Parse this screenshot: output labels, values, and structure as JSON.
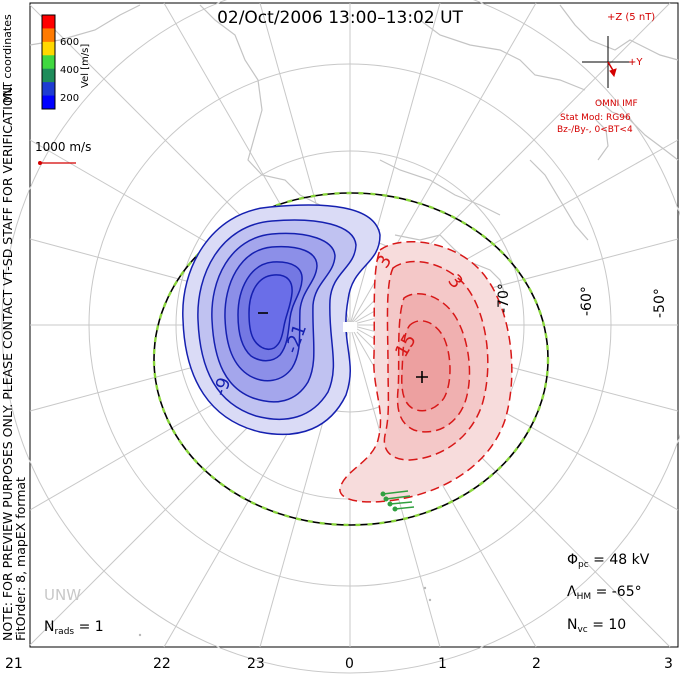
{
  "title": "02/Oct/2006 13:00–13:02 UT",
  "notes": {
    "line1": "NOTE: FOR PREVIEW PURPOSES ONLY. PLEASE CONTACT VT-SD STAFF FOR VERIFICATION.",
    "line2": "FitOrder: 8, mapEX format",
    "coords": "MLT coordinates"
  },
  "colorbar": {
    "label": "Vel [m/s]",
    "ticks": [
      "600",
      "400",
      "200"
    ],
    "colors": [
      "#ff0000",
      "#ff7a00",
      "#ffd800",
      "#40d840",
      "#1e8c5a",
      "#1e3cd2",
      "#0000ff"
    ]
  },
  "reference_vector": {
    "label": "1000 m/s"
  },
  "imf": {
    "z_label": "+Z (5 nT)",
    "y_label": "+Y",
    "source": "OMNI IMF",
    "model": "Stat Mod: RG96",
    "condition": "Bz-/By-, 0<BT<4"
  },
  "lat_labels": [
    "-70°",
    "-60°",
    "-50°"
  ],
  "mlt_ticks": [
    "21",
    "22",
    "23",
    "0",
    "1",
    "2",
    "3"
  ],
  "contour_labels": {
    "negative": [
      "-21",
      "-9"
    ],
    "positive": [
      "3",
      "3",
      "15"
    ]
  },
  "stats": {
    "phi_symbol": "Φ",
    "phi_sub": "pc",
    "phi_value": "= 48 kV",
    "lambda_symbol": "Λ",
    "lambda_sub": "HM",
    "lambda_value": "= -65°",
    "nvc_symbol": "N",
    "nvc_sub": "vc",
    "nvc_value": "= 10",
    "nrads_symbol": "N",
    "nrads_sub": "rads",
    "nrads_value": "= 1"
  },
  "station_label": "UNW",
  "colors": {
    "negative_line": "#1520b0",
    "negative_fill": "#6a6ee8",
    "positive_line": "#d81818",
    "positive_fill": "#f0a0a0",
    "boundary_green": "#8ad63c",
    "coastline": "#c4c4c4",
    "grid": "#c8c8c8"
  }
}
